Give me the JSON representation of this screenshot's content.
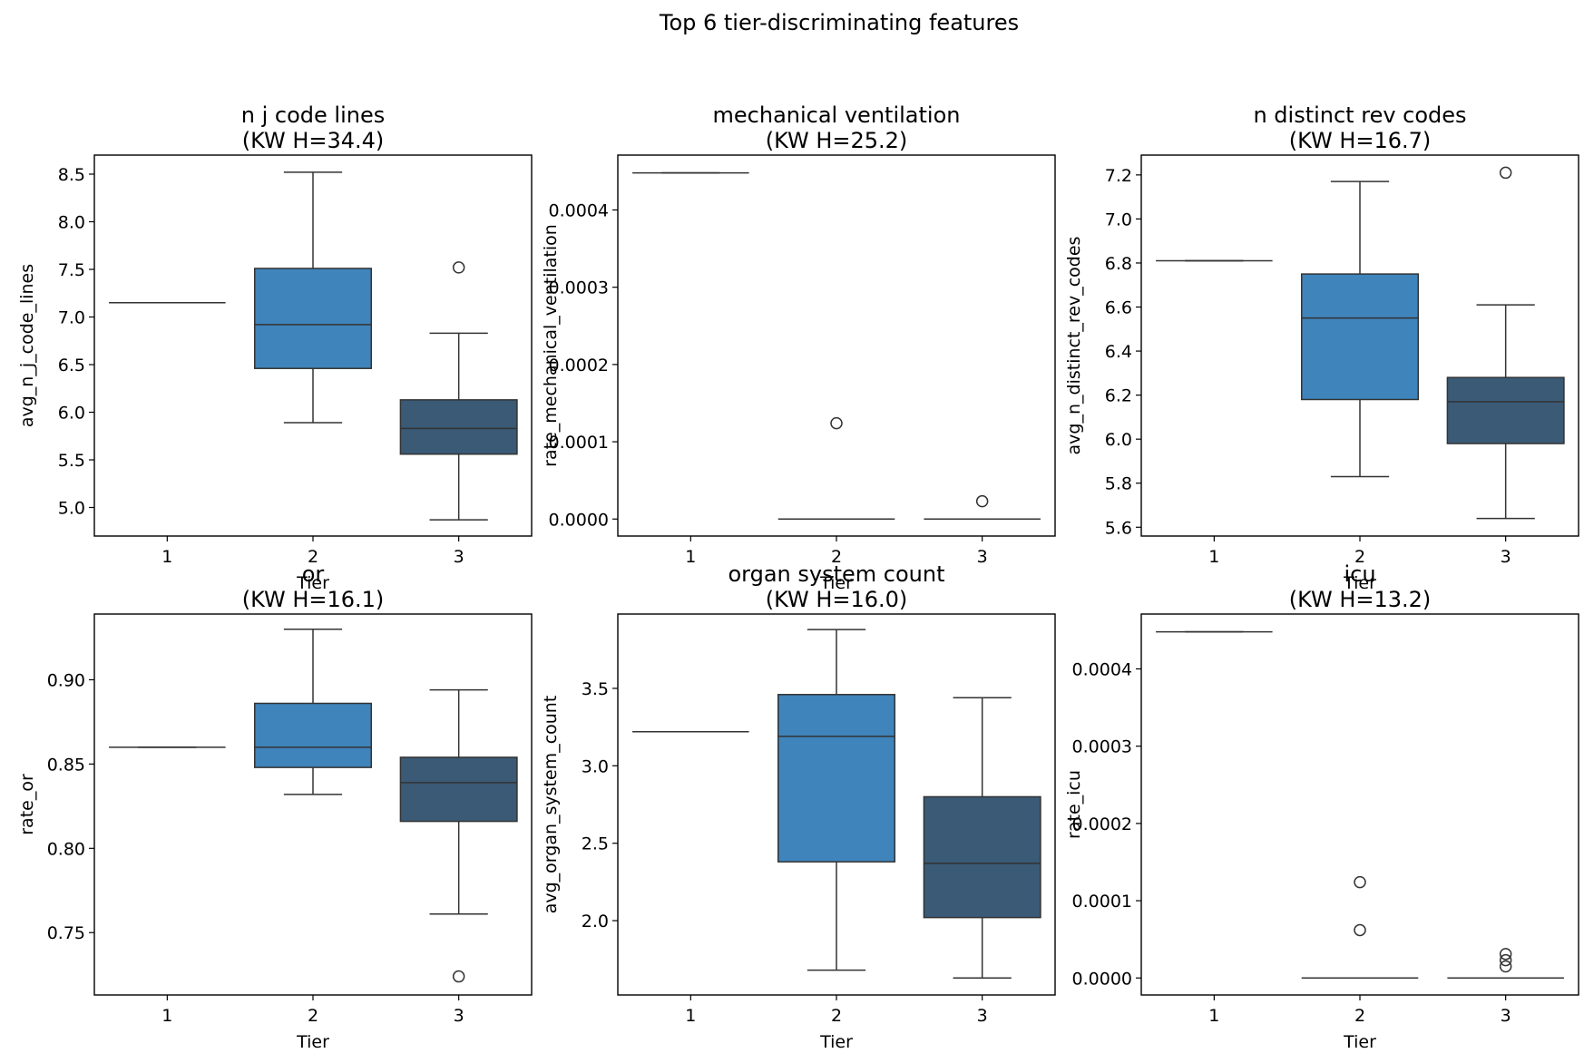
{
  "figure_title": "Top 6 tier-discriminating features",
  "colors": {
    "tier1": "#3a7aad",
    "tier2": "#3f84bb",
    "tier3": "#3a5a76",
    "line": "#333333"
  },
  "chart_data": [
    {
      "type": "box",
      "title_line1": "n j code lines",
      "title_line2": "(KW H=34.4)",
      "xlabel": "Tier",
      "ylabel": "avg_n_j_code_lines",
      "categories": [
        "1",
        "2",
        "3"
      ],
      "ylim": [
        4.7,
        8.7
      ],
      "yticks": [
        5.0,
        5.5,
        6.0,
        6.5,
        7.0,
        7.5,
        8.0,
        8.5
      ],
      "ytick_labels": [
        "5.0",
        "5.5",
        "6.0",
        "6.5",
        "7.0",
        "7.5",
        "8.0",
        "8.5"
      ],
      "boxes": [
        {
          "tier": "1",
          "whislo": 7.15,
          "q1": 7.15,
          "med": 7.15,
          "q3": 7.15,
          "whishi": 7.15,
          "fliers": []
        },
        {
          "tier": "2",
          "whislo": 5.89,
          "q1": 6.46,
          "med": 6.92,
          "q3": 7.51,
          "whishi": 8.52,
          "fliers": []
        },
        {
          "tier": "3",
          "whislo": 4.87,
          "q1": 5.56,
          "med": 5.83,
          "q3": 6.13,
          "whishi": 6.83,
          "fliers": [
            7.52
          ]
        }
      ]
    },
    {
      "type": "box",
      "title_line1": "mechanical ventilation",
      "title_line2": "(KW H=25.2)",
      "xlabel": "Tier",
      "ylabel": "rate_mechanical_ventilation",
      "categories": [
        "1",
        "2",
        "3"
      ],
      "ylim": [
        -2.2e-05,
        0.000471
      ],
      "yticks": [
        0.0,
        0.0001,
        0.0002,
        0.0003,
        0.0004
      ],
      "ytick_labels": [
        "0.0000",
        "0.0001",
        "0.0002",
        "0.0003",
        "0.0004"
      ],
      "boxes": [
        {
          "tier": "1",
          "whislo": 0.000448,
          "q1": 0.000448,
          "med": 0.000448,
          "q3": 0.000448,
          "whishi": 0.000448,
          "fliers": []
        },
        {
          "tier": "2",
          "whislo": 0.0,
          "q1": 0.0,
          "med": 0.0,
          "q3": 0.0,
          "whishi": 0.0,
          "fliers": [
            0.000124
          ]
        },
        {
          "tier": "3",
          "whislo": 0.0,
          "q1": 0.0,
          "med": 0.0,
          "q3": 0.0,
          "whishi": 0.0,
          "fliers": [
            2.3e-05
          ]
        }
      ]
    },
    {
      "type": "box",
      "title_line1": "n distinct rev codes",
      "title_line2": "(KW H=16.7)",
      "xlabel": "Tier",
      "ylabel": "avg_n_distinct_rev_codes",
      "categories": [
        "1",
        "2",
        "3"
      ],
      "ylim": [
        5.56,
        7.29
      ],
      "yticks": [
        5.6,
        5.8,
        6.0,
        6.2,
        6.4,
        6.6,
        6.8,
        7.0,
        7.2
      ],
      "ytick_labels": [
        "5.6",
        "5.8",
        "6.0",
        "6.2",
        "6.4",
        "6.6",
        "6.8",
        "7.0",
        "7.2"
      ],
      "boxes": [
        {
          "tier": "1",
          "whislo": 6.81,
          "q1": 6.81,
          "med": 6.81,
          "q3": 6.81,
          "whishi": 6.81,
          "fliers": []
        },
        {
          "tier": "2",
          "whislo": 5.83,
          "q1": 6.18,
          "med": 6.55,
          "q3": 6.75,
          "whishi": 7.17,
          "fliers": []
        },
        {
          "tier": "3",
          "whislo": 5.64,
          "q1": 5.98,
          "med": 6.17,
          "q3": 6.28,
          "whishi": 6.61,
          "fliers": [
            7.21
          ]
        }
      ]
    },
    {
      "type": "box",
      "title_line1": "or",
      "title_line2": "(KW H=16.1)",
      "xlabel": "Tier",
      "ylabel": "rate_or",
      "categories": [
        "1",
        "2",
        "3"
      ],
      "ylim": [
        0.713,
        0.939
      ],
      "yticks": [
        0.75,
        0.8,
        0.85,
        0.9
      ],
      "ytick_labels": [
        "0.75",
        "0.80",
        "0.85",
        "0.90"
      ],
      "boxes": [
        {
          "tier": "1",
          "whislo": 0.86,
          "q1": 0.86,
          "med": 0.86,
          "q3": 0.86,
          "whishi": 0.86,
          "fliers": []
        },
        {
          "tier": "2",
          "whislo": 0.832,
          "q1": 0.848,
          "med": 0.86,
          "q3": 0.886,
          "whishi": 0.93,
          "fliers": []
        },
        {
          "tier": "3",
          "whislo": 0.761,
          "q1": 0.816,
          "med": 0.839,
          "q3": 0.854,
          "whishi": 0.894,
          "fliers": [
            0.724
          ]
        }
      ]
    },
    {
      "type": "box",
      "title_line1": "organ system count",
      "title_line2": "(KW H=16.0)",
      "xlabel": "Tier",
      "ylabel": "avg_organ_system_count",
      "categories": [
        "1",
        "2",
        "3"
      ],
      "ylim": [
        1.52,
        3.98
      ],
      "yticks": [
        2.0,
        2.5,
        3.0,
        3.5
      ],
      "ytick_labels": [
        "2.0",
        "2.5",
        "3.0",
        "3.5"
      ],
      "boxes": [
        {
          "tier": "1",
          "whislo": 3.22,
          "q1": 3.22,
          "med": 3.22,
          "q3": 3.22,
          "whishi": 3.22,
          "fliers": []
        },
        {
          "tier": "2",
          "whislo": 1.68,
          "q1": 2.38,
          "med": 3.19,
          "q3": 3.46,
          "whishi": 3.88,
          "fliers": []
        },
        {
          "tier": "3",
          "whislo": 1.63,
          "q1": 2.02,
          "med": 2.37,
          "q3": 2.8,
          "whishi": 3.44,
          "fliers": []
        }
      ]
    },
    {
      "type": "box",
      "title_line1": "icu",
      "title_line2": "(KW H=13.2)",
      "xlabel": "Tier",
      "ylabel": "rate_icu",
      "categories": [
        "1",
        "2",
        "3"
      ],
      "ylim": [
        -2.2e-05,
        0.000471
      ],
      "yticks": [
        0.0,
        0.0001,
        0.0002,
        0.0003,
        0.0004
      ],
      "ytick_labels": [
        "0.0000",
        "0.0001",
        "0.0002",
        "0.0003",
        "0.0004"
      ],
      "boxes": [
        {
          "tier": "1",
          "whislo": 0.000448,
          "q1": 0.000448,
          "med": 0.000448,
          "q3": 0.000448,
          "whishi": 0.000448,
          "fliers": []
        },
        {
          "tier": "2",
          "whislo": 0.0,
          "q1": 0.0,
          "med": 0.0,
          "q3": 0.0,
          "whishi": 0.0,
          "fliers": [
            0.000124,
            6.2e-05
          ]
        },
        {
          "tier": "3",
          "whislo": 0.0,
          "q1": 0.0,
          "med": 0.0,
          "q3": 0.0,
          "whishi": 0.0,
          "fliers": [
            3.1e-05,
            2.3e-05,
            1.5e-05
          ]
        }
      ]
    }
  ]
}
